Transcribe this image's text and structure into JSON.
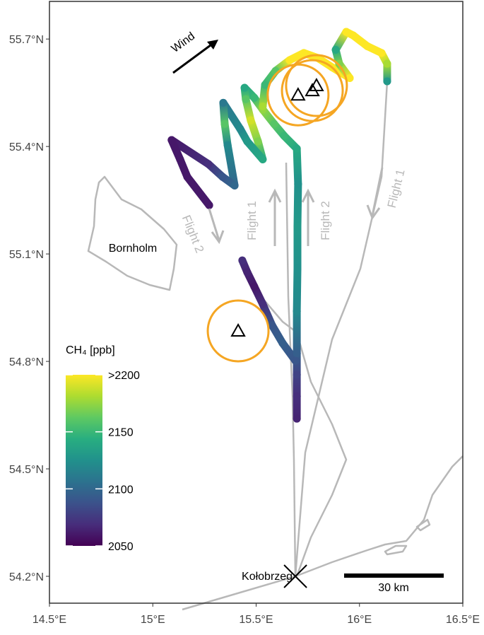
{
  "chart_data": {
    "type": "map",
    "xlim": [
      14.5,
      16.5
    ],
    "ylim": [
      54.125,
      55.805
    ],
    "xticks": [
      {
        "value": 14.5,
        "label": "14.5°E"
      },
      {
        "value": 15,
        "label": "15°E"
      },
      {
        "value": 15.5,
        "label": "15.5°E"
      },
      {
        "value": 16,
        "label": "16°E"
      },
      {
        "value": 16.5,
        "label": "16.5°E"
      }
    ],
    "yticks": [
      {
        "value": 54.2,
        "label": "54.2°N"
      },
      {
        "value": 54.5,
        "label": "54.5°N"
      },
      {
        "value": 54.8,
        "label": "54.8°N"
      },
      {
        "value": 55.1,
        "label": "55.1°N"
      },
      {
        "value": 55.4,
        "label": "55.4°N"
      },
      {
        "value": 55.7,
        "label": "55.7°N"
      }
    ],
    "track": {
      "lon": [
        15.697,
        15.697,
        15.697,
        15.697,
        15.697,
        15.7,
        15.7,
        15.703,
        15.697,
        15.635,
        15.587,
        15.532,
        15.491,
        15.444,
        15.45,
        15.474,
        15.509,
        15.532,
        15.457,
        15.423,
        15.341,
        15.348,
        15.362,
        15.396,
        15.338,
        15.269,
        15.091,
        15.132,
        15.167,
        15.273,
        null,
        15.433,
        15.457,
        15.491,
        15.532,
        15.577,
        15.628,
        15.69,
        null,
        15.532,
        15.543,
        15.594,
        15.662,
        15.731,
        15.799,
        15.868,
        15.953,
        15.902,
        15.885,
        15.936,
        15.97,
        16.038,
        16.107,
        16.134,
        16.134
      ],
      "lat": [
        54.64,
        54.703,
        54.763,
        54.822,
        54.94,
        55.059,
        55.177,
        55.295,
        55.394,
        55.43,
        55.463,
        55.503,
        55.536,
        55.564,
        55.532,
        55.473,
        55.414,
        55.364,
        55.414,
        55.449,
        55.522,
        55.463,
        55.404,
        55.291,
        55.315,
        55.351,
        55.418,
        55.364,
        55.315,
        55.236,
        null,
        55.082,
        55.049,
        55.009,
        54.96,
        54.901,
        54.851,
        54.802,
        null,
        55.512,
        55.572,
        55.611,
        55.641,
        55.661,
        55.647,
        55.621,
        55.591,
        55.631,
        55.67,
        55.72,
        55.71,
        55.68,
        55.661,
        55.631,
        55.582
      ],
      "ch4": [
        2065,
        2070,
        2080,
        2095,
        2120,
        2125,
        2130,
        2125,
        2140,
        2150,
        2160,
        2175,
        2150,
        2140,
        2160,
        2190,
        2170,
        2140,
        2130,
        2120,
        2110,
        2160,
        2120,
        2100,
        2090,
        2070,
        2060,
        2060,
        2060,
        2060,
        null,
        2070,
        2065,
        2060,
        2070,
        2090,
        2095,
        2090,
        null,
        2180,
        2150,
        2160,
        2200,
        2210,
        2230,
        2220,
        2200,
        2170,
        2140,
        2200,
        2230,
        2240,
        2200,
        2180,
        2130
      ]
    },
    "sources": {
      "lon": [
        15.413,
        15.703,
        15.772,
        15.792
      ],
      "lat": [
        54.885,
        55.544,
        55.556,
        55.57
      ],
      "color": "#f5a623"
    },
    "city": {
      "name": "Kołobrzeg",
      "lon": 15.69,
      "lat": 54.2
    },
    "colorbar": {
      "title": "CH₄ [ppb]",
      "clim": [
        2050,
        2200
      ],
      "ticks": [
        {
          "value": 2200,
          "label": ">2200"
        },
        2150,
        2100,
        2050
      ],
      "colormap": [
        "#440154",
        "#472d7b",
        "#3b528b",
        "#2c728e",
        "#21918c",
        "#28ae80",
        "#5ec962",
        "#addc30",
        "#fde725"
      ]
    },
    "labels": {
      "wind": "Wind",
      "island": "Bornholm",
      "flights": [
        "Flight 2",
        "Flight 1",
        "Flight 2",
        "Flight 1"
      ]
    },
    "scalebar": "30 km"
  }
}
